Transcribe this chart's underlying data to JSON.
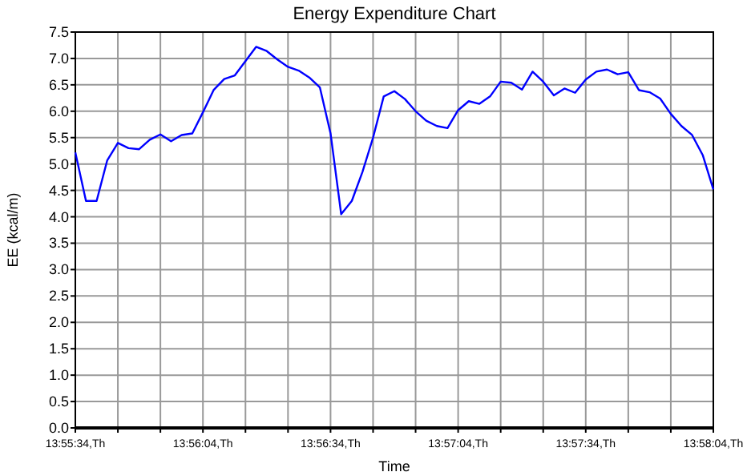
{
  "chart_data": {
    "type": "line",
    "title": "Energy Expenditure Chart",
    "xlabel": "Time",
    "ylabel": "EE (kcal/m)",
    "categories": [
      "13:55:34,Th",
      null,
      null,
      null,
      null,
      null,
      null,
      null,
      null,
      null,
      null,
      null,
      "13:56:04,Th",
      null,
      null,
      null,
      null,
      null,
      null,
      null,
      null,
      null,
      null,
      null,
      "13:56:34,Th",
      null,
      null,
      null,
      null,
      null,
      null,
      null,
      null,
      null,
      null,
      null,
      "13:57:04,Th",
      null,
      null,
      null,
      null,
      null,
      null,
      null,
      null,
      null,
      null,
      null,
      "13:57:34,Th",
      null,
      null,
      null,
      null,
      null,
      null,
      null,
      null,
      null,
      null,
      null,
      "13:58:04,Th"
    ],
    "series": [
      {
        "color": "#0000ff",
        "values": [
          5.22,
          4.3,
          4.3,
          5.07,
          5.4,
          5.3,
          5.28,
          5.46,
          5.56,
          5.43,
          5.55,
          5.58,
          5.98,
          6.4,
          6.61,
          6.68,
          6.95,
          7.22,
          7.14,
          6.98,
          6.84,
          6.77,
          6.64,
          6.45,
          5.58,
          4.05,
          4.3,
          4.85,
          5.5,
          6.28,
          6.38,
          6.23,
          6.0,
          5.82,
          5.72,
          5.68,
          6.02,
          6.19,
          6.14,
          6.28,
          6.56,
          6.54,
          6.41,
          6.75,
          6.56,
          6.3,
          6.43,
          6.35,
          6.6,
          6.75,
          6.79,
          6.7,
          6.74,
          6.4,
          6.36,
          6.24,
          5.95,
          5.72,
          5.55,
          5.17,
          4.52
        ]
      }
    ],
    "ylim": [
      0,
      7.5
    ],
    "yticks": [
      {
        "value": 0,
        "label": "0.0"
      },
      {
        "value": 0.5,
        "label": "0.5"
      },
      {
        "value": 1,
        "label": "1.0"
      },
      {
        "value": 1.5,
        "label": "1.5"
      },
      {
        "value": 2,
        "label": "2.0"
      },
      {
        "value": 2.5,
        "label": "2.5"
      },
      {
        "value": 3,
        "label": "3.0"
      },
      {
        "value": 3.5,
        "label": "3.5"
      },
      {
        "value": 4,
        "label": "4.0"
      },
      {
        "value": 4.5,
        "label": "4.5"
      },
      {
        "value": 5,
        "label": "5.0"
      },
      {
        "value": 5.5,
        "label": "5.5"
      },
      {
        "value": 6,
        "label": "6.0"
      },
      {
        "value": 6.5,
        "label": "6.5"
      },
      {
        "value": 7,
        "label": "7.0"
      },
      {
        "value": 7.5,
        "label": "7.5"
      }
    ],
    "grid": true
  }
}
